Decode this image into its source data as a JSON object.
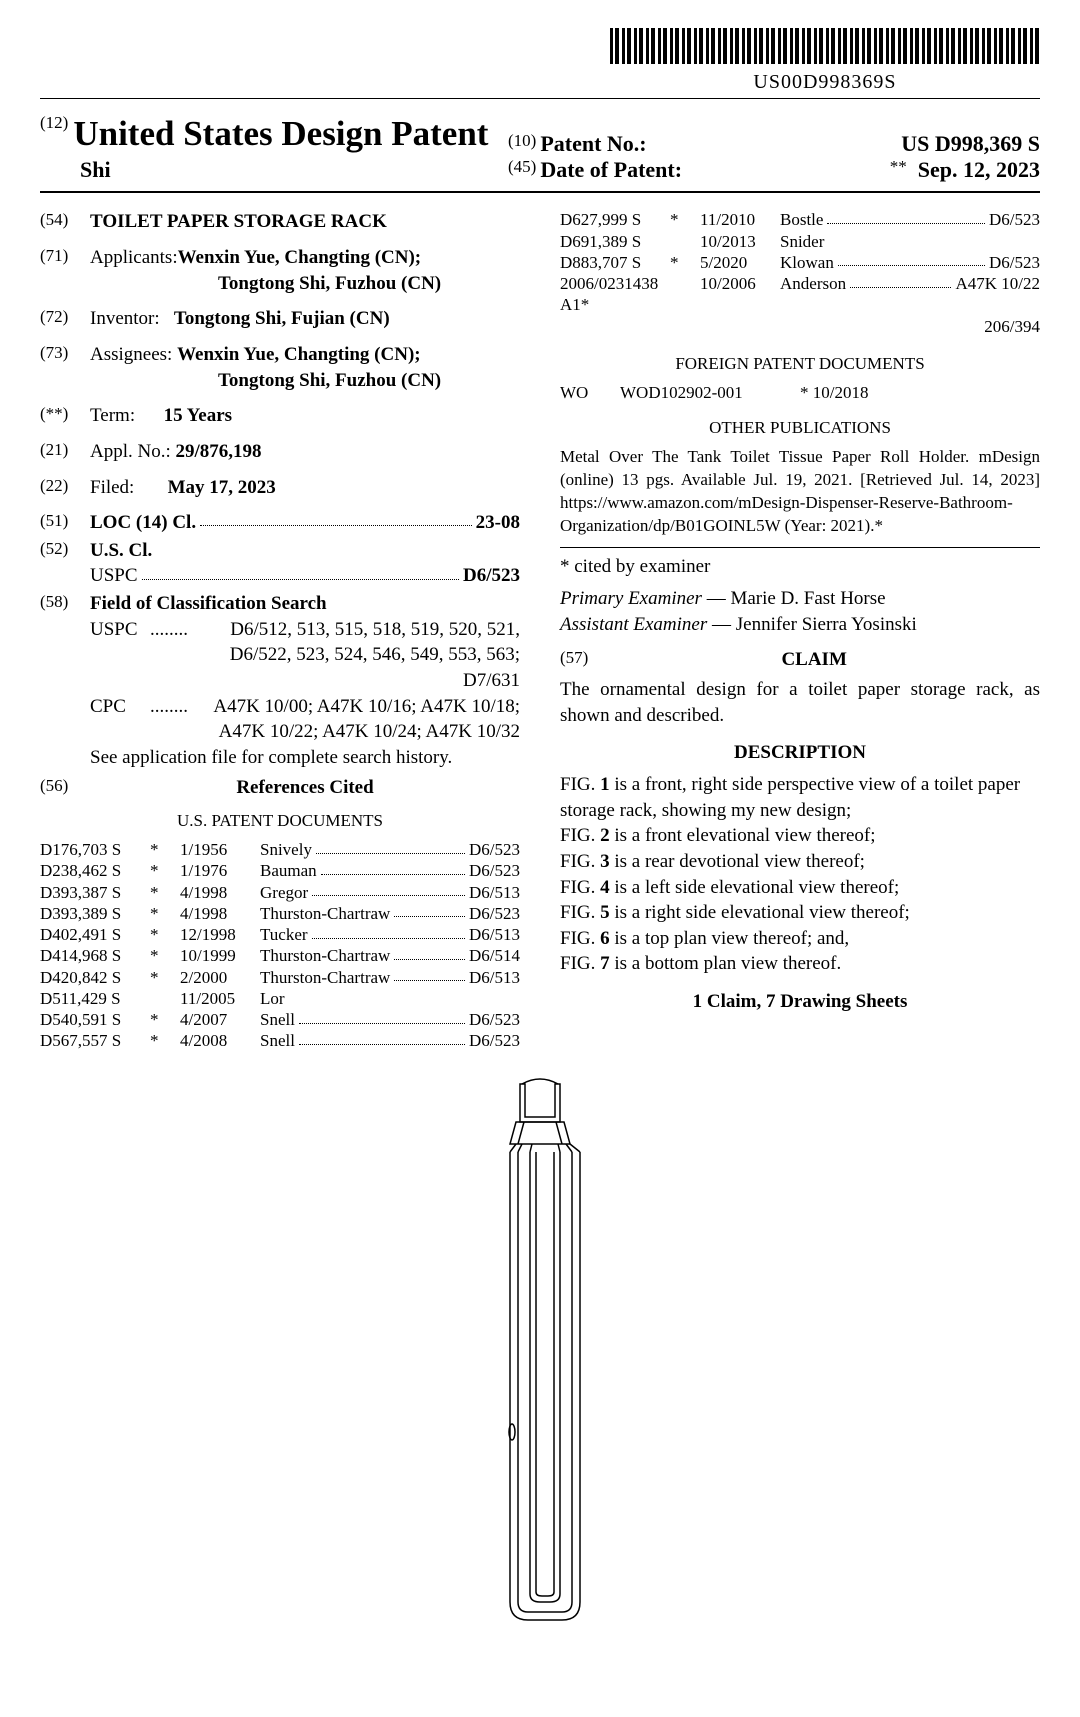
{
  "barcode_text": "US00D998369S",
  "header": {
    "code12": "(12)",
    "title": "United States Design Patent",
    "author": "Shi",
    "code10": "(10)",
    "patent_no_label": "Patent No.:",
    "patent_no": "US D998,369 S",
    "code45": "(45)",
    "date_label": "Date of Patent:",
    "date_stars": "**",
    "date": "Sep. 12, 2023"
  },
  "left": {
    "s54_code": "(54)",
    "s54_title": "TOILET PAPER STORAGE RACK",
    "s71_code": "(71)",
    "s71_label": "Applicants:",
    "s71_body1": "Wenxin Yue, Changting (CN);",
    "s71_body2": "Tongtong Shi, Fuzhou (CN)",
    "s72_code": "(72)",
    "s72_label": "Inventor:",
    "s72_body": "Tongtong Shi, Fujian (CN)",
    "s73_code": "(73)",
    "s73_label": "Assignees:",
    "s73_body1": "Wenxin Yue, Changting (CN);",
    "s73_body2": "Tongtong Shi, Fuzhou (CN)",
    "star_code": "(**)",
    "term_label": "Term:",
    "term_body": "15 Years",
    "s21_code": "(21)",
    "s21_label": "Appl. No.:",
    "s21_body": "29/876,198",
    "s22_code": "(22)",
    "s22_label": "Filed:",
    "s22_body": "May 17, 2023",
    "s51_code": "(51)",
    "s51_label": "LOC (14) Cl.",
    "s51_val": "23-08",
    "s52_code": "(52)",
    "s52_label": "U.S. Cl.",
    "s52_sub": "USPC",
    "s52_val": "D6/523",
    "s58_code": "(58)",
    "s58_label": "Field of Classification Search",
    "s58_uspc": "USPC",
    "s58_uspc_body": "D6/512, 513, 515, 518, 519, 520, 521, D6/522, 523, 524, 546, 549, 553, 563; D7/631",
    "s58_cpc": "CPC",
    "s58_cpc_body": "A47K 10/00; A47K 10/16; A47K 10/18; A47K 10/22; A47K 10/24; A47K 10/32",
    "s58_note": "See application file for complete search history.",
    "s56_code": "(56)",
    "s56_label": "References Cited",
    "us_docs_title": "U.S. PATENT DOCUMENTS",
    "us_docs": [
      {
        "num": "D176,703 S",
        "star": "*",
        "date": "1/1956",
        "name": "Snively",
        "cls": "D6/523"
      },
      {
        "num": "D238,462 S",
        "star": "*",
        "date": "1/1976",
        "name": "Bauman",
        "cls": "D6/523"
      },
      {
        "num": "D393,387 S",
        "star": "*",
        "date": "4/1998",
        "name": "Gregor",
        "cls": "D6/513"
      },
      {
        "num": "D393,389 S",
        "star": "*",
        "date": "4/1998",
        "name": "Thurston-Chartraw",
        "cls": "D6/523"
      },
      {
        "num": "D402,491 S",
        "star": "*",
        "date": "12/1998",
        "name": "Tucker",
        "cls": "D6/513"
      },
      {
        "num": "D414,968 S",
        "star": "*",
        "date": "10/1999",
        "name": "Thurston-Chartraw",
        "cls": "D6/514"
      },
      {
        "num": "D420,842 S",
        "star": "*",
        "date": "2/2000",
        "name": "Thurston-Chartraw",
        "cls": "D6/513"
      },
      {
        "num": "D511,429 S",
        "star": "",
        "date": "11/2005",
        "name": "Lor",
        "cls": ""
      },
      {
        "num": "D540,591 S",
        "star": "*",
        "date": "4/2007",
        "name": "Snell",
        "cls": "D6/523"
      },
      {
        "num": "D567,557 S",
        "star": "*",
        "date": "4/2008",
        "name": "Snell",
        "cls": "D6/523"
      }
    ]
  },
  "right": {
    "top_docs": [
      {
        "num": "D627,999 S",
        "star": "*",
        "date": "11/2010",
        "name": "Bostle",
        "cls": "D6/523"
      },
      {
        "num": "D691,389 S",
        "star": "",
        "date": "10/2013",
        "name": "Snider",
        "cls": ""
      },
      {
        "num": "D883,707 S",
        "star": "*",
        "date": "5/2020",
        "name": "Klowan",
        "cls": "D6/523"
      },
      {
        "num": "2006/0231438 A1*",
        "star": "",
        "date": "10/2006",
        "name": "Anderson",
        "cls": "A47K 10/22"
      }
    ],
    "top_docs_extra": "206/394",
    "foreign_title": "FOREIGN PATENT DOCUMENTS",
    "foreign": {
      "cc": "WO",
      "num": "WOD102902-001",
      "star": "* 10/2018"
    },
    "other_title": "OTHER PUBLICATIONS",
    "other_body": "Metal Over The Tank Toilet Tissue Paper Roll Holder. mDesign (online) 13 pgs. Available Jul. 19, 2021. [Retrieved Jul. 14, 2023] https://www.amazon.com/mDesign-Dispenser-Reserve-Bathroom-Organization/dp/B01GOINL5W (Year: 2021).*",
    "cited_note": "* cited by examiner",
    "primary_label": "Primary Examiner",
    "primary_val": "— Marie D. Fast Horse",
    "assistant_label": "Assistant Examiner",
    "assistant_val": "— Jennifer Sierra Yosinski",
    "s57_code": "(57)",
    "claim_title": "CLAIM",
    "claim_body": "The ornamental design for a toilet paper storage rack, as shown and described.",
    "desc_title": "DESCRIPTION",
    "figs": [
      "FIG. 1 is a front, right side perspective view of a toilet paper storage rack, showing my new design;",
      "FIG. 2 is a front elevational view thereof;",
      "FIG. 3 is a rear devotional view thereof;",
      "FIG. 4 is a left side elevational view thereof;",
      "FIG. 5 is a right side elevational view thereof;",
      "FIG. 6 is a top plan view thereof; and,",
      "FIG. 7 is a bottom plan view thereof."
    ],
    "claims_sheets": "1 Claim, 7 Drawing Sheets"
  }
}
